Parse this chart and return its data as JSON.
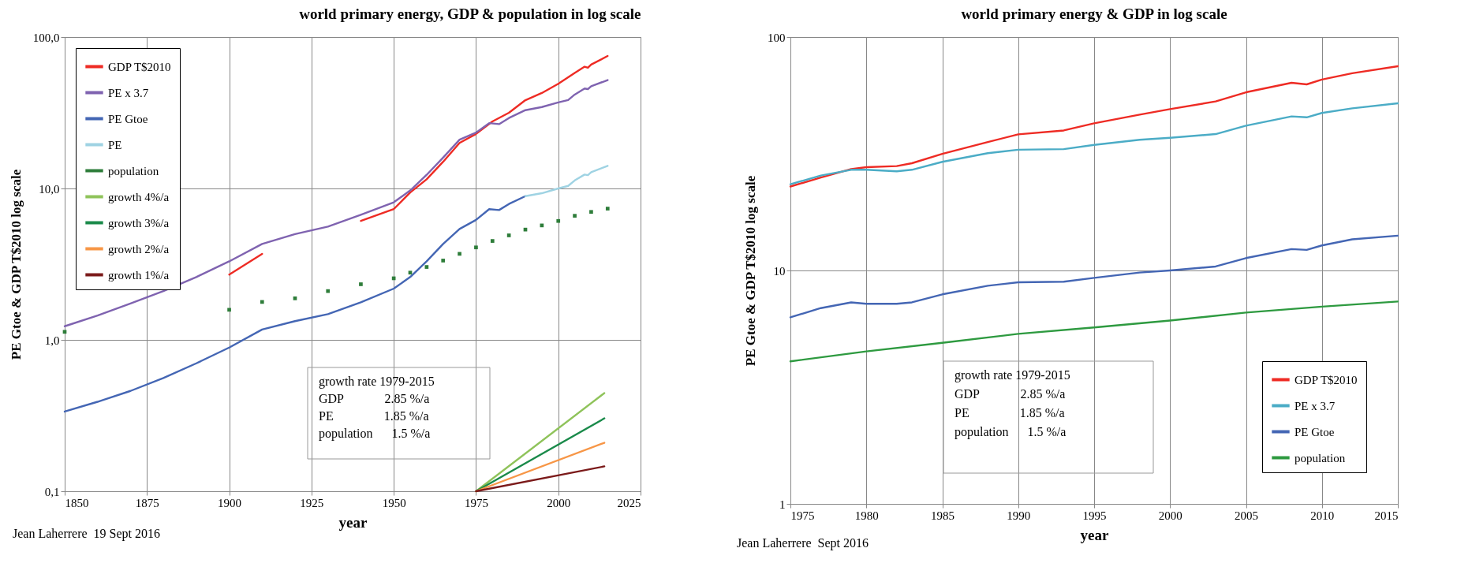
{
  "chart_data": [
    {
      "type": "line",
      "title": "world primary energy, GDP & population in log scale",
      "xlabel": "year",
      "ylabel": "PE Gtoe & GDP T$2010 log scale",
      "log": true,
      "grid": true,
      "legend": "top left",
      "xlim": [
        1850,
        2025
      ],
      "xticks": [
        1850,
        1875,
        1900,
        1925,
        1950,
        1975,
        2000,
        2025
      ],
      "ylim": [
        0.1,
        100
      ],
      "yticks": [
        {
          "value": 0.1,
          "label": "0,1"
        },
        {
          "value": 1,
          "label": "1,0"
        },
        {
          "value": 10,
          "label": "10,0"
        },
        {
          "value": 100,
          "label": "100,0"
        }
      ],
      "annotations": [
        "growth rate 1979-2015",
        "GDP             2.85 %/a",
        "PE                1.85 %/a",
        "population      1.5 %/a",
        "Jean Laherrere  19 Sept 2016"
      ],
      "series": [
        {
          "name": "GDP T$2010",
          "color": "#ee2b24",
          "x": [
            1900,
            1910,
            1925,
            1940,
            1950,
            1955,
            1960,
            1965,
            1970,
            1975,
            1980,
            1985,
            1990,
            1995,
            2000,
            2005,
            2008,
            2009,
            2010,
            2015
          ],
          "values": [
            2.7,
            3.7,
            null,
            6.1,
            7.3,
            9.4,
            11.5,
            15,
            20,
            22.9,
            27.7,
            31.6,
            38.3,
            42.7,
            49.1,
            58,
            63.7,
            62.7,
            65.8,
            75
          ]
        },
        {
          "name": "PE x 3.7",
          "color": "#7f63b0",
          "x": [
            1850,
            1860,
            1870,
            1880,
            1890,
            1900,
            1910,
            1920,
            1930,
            1940,
            1950,
            1955,
            1960,
            1965,
            1970,
            1975,
            1979,
            1982,
            1985,
            1990,
            1995,
            2000,
            2003,
            2005,
            2008,
            2009,
            2010,
            2015
          ],
          "values": [
            1.23,
            1.45,
            1.74,
            2.1,
            2.6,
            3.3,
            4.3,
            5.0,
            5.6,
            6.7,
            8.1,
            9.7,
            12.3,
            16,
            21,
            23.4,
            27,
            26.6,
            29.2,
            32.9,
            34.5,
            37,
            38.4,
            41.7,
            45.7,
            45.3,
            47.3,
            52
          ]
        },
        {
          "name": "PE Gtoe",
          "color": "#4466b4",
          "x": [
            1850,
            1860,
            1870,
            1880,
            1890,
            1900,
            1910,
            1920,
            1930,
            1940,
            1950,
            1955,
            1960,
            1965,
            1970,
            1975,
            1979,
            1982,
            1985,
            1990
          ],
          "values": [
            0.336,
            0.39,
            0.46,
            0.56,
            0.7,
            0.89,
            1.17,
            1.33,
            1.48,
            1.77,
            2.18,
            2.6,
            3.3,
            4.3,
            5.4,
            6.2,
            7.3,
            7.2,
            7.9,
            8.9
          ]
        },
        {
          "name": "PE",
          "color": "#9fd3e3",
          "x": [
            1990,
            1995,
            2000,
            2003,
            2005,
            2008,
            2009,
            2010,
            2015
          ],
          "values": [
            8.9,
            9.3,
            10.0,
            10.4,
            11.3,
            12.35,
            12.25,
            12.8,
            14.1
          ]
        },
        {
          "name": "population",
          "color": "#2e7d3a",
          "type": "scatter",
          "marker": "square",
          "x": [
            1850,
            1900,
            1910,
            1920,
            1930,
            1940,
            1950,
            1955,
            1960,
            1965,
            1970,
            1975,
            1980,
            1985,
            1990,
            1995,
            2000,
            2005,
            2010,
            2015
          ],
          "values": [
            1.13,
            1.58,
            1.78,
            1.88,
            2.1,
            2.33,
            2.55,
            2.78,
            3.03,
            3.34,
            3.7,
            4.08,
            4.5,
            4.9,
            5.35,
            5.7,
            6.1,
            6.6,
            7.0,
            7.36
          ]
        },
        {
          "name": "growth 4%/a",
          "color": "#8fc35a",
          "x": [
            1975,
            2014
          ],
          "values": [
            0.1,
            0.445
          ]
        },
        {
          "name": "growth 3%/a",
          "color": "#1a8a4a",
          "x": [
            1975,
            2014
          ],
          "values": [
            0.1,
            0.303
          ]
        },
        {
          "name": "growth 2%/a",
          "color": "#f79646",
          "x": [
            1975,
            2014
          ],
          "values": [
            0.1,
            0.209
          ]
        },
        {
          "name": "growth 1%/a",
          "color": "#7b1a1a",
          "x": [
            1975,
            2014
          ],
          "values": [
            0.1,
            0.146
          ]
        }
      ]
    },
    {
      "type": "line",
      "title": "world primary energy & GDP in log scale",
      "xlabel": "year",
      "ylabel": "PE Gtoe & GDP T$2010 log scale",
      "log": true,
      "grid": true,
      "legend": "bottom right",
      "xlim": [
        1975,
        2015
      ],
      "xticks": [
        1975,
        1980,
        1985,
        1990,
        1995,
        2000,
        2005,
        2010,
        2015
      ],
      "ylim": [
        1,
        100
      ],
      "yticks": [
        1,
        10,
        100
      ],
      "annotations": [
        "growth rate 1979-2015",
        "GDP             2.85 %/a",
        "PE                1.85 %/a",
        "population      1.5 %/a",
        "Jean Laherrere  Sept 2016"
      ],
      "series": [
        {
          "name": "GDP T$2010",
          "color": "#ee2b24",
          "x": [
            1975,
            1977,
            1979,
            1980,
            1982,
            1983,
            1985,
            1988,
            1990,
            1993,
            1995,
            1998,
            2000,
            2003,
            2005,
            2008,
            2009,
            2010,
            2012,
            2015
          ],
          "values": [
            22.9,
            25,
            27.2,
            27.7,
            28,
            28.8,
            31.6,
            35.5,
            38.3,
            39.8,
            42.7,
            46.5,
            49.1,
            53,
            58,
            63.7,
            62.7,
            65.8,
            70,
            75
          ]
        },
        {
          "name": "PE x 3.7",
          "color": "#4bacc6",
          "x": [
            1975,
            1977,
            1979,
            1980,
            1982,
            1983,
            1985,
            1988,
            1990,
            1993,
            1995,
            1998,
            2000,
            2003,
            2005,
            2008,
            2009,
            2010,
            2012,
            2015
          ],
          "values": [
            23.4,
            25.5,
            27,
            27,
            26.6,
            27,
            29.2,
            31.8,
            32.9,
            33.1,
            34.5,
            36.3,
            37,
            38.4,
            41.7,
            45.7,
            45.3,
            47.3,
            49.5,
            52
          ]
        },
        {
          "name": "PE Gtoe",
          "color": "#4466b4",
          "x": [
            1975,
            1977,
            1979,
            1980,
            1982,
            1983,
            1985,
            1988,
            1990,
            1993,
            1995,
            1998,
            2000,
            2003,
            2005,
            2008,
            2009,
            2010,
            2012,
            2015
          ],
          "values": [
            6.3,
            6.9,
            7.3,
            7.2,
            7.2,
            7.3,
            7.9,
            8.6,
            8.9,
            8.95,
            9.3,
            9.8,
            10.0,
            10.4,
            11.3,
            12.35,
            12.25,
            12.8,
            13.6,
            14.1
          ]
        },
        {
          "name": "population",
          "color": "#2e9a40",
          "x": [
            1975,
            1980,
            1985,
            1990,
            1995,
            2000,
            2005,
            2010,
            2015
          ],
          "values": [
            4.08,
            4.5,
            4.9,
            5.35,
            5.7,
            6.1,
            6.6,
            7.0,
            7.36
          ]
        }
      ]
    }
  ]
}
